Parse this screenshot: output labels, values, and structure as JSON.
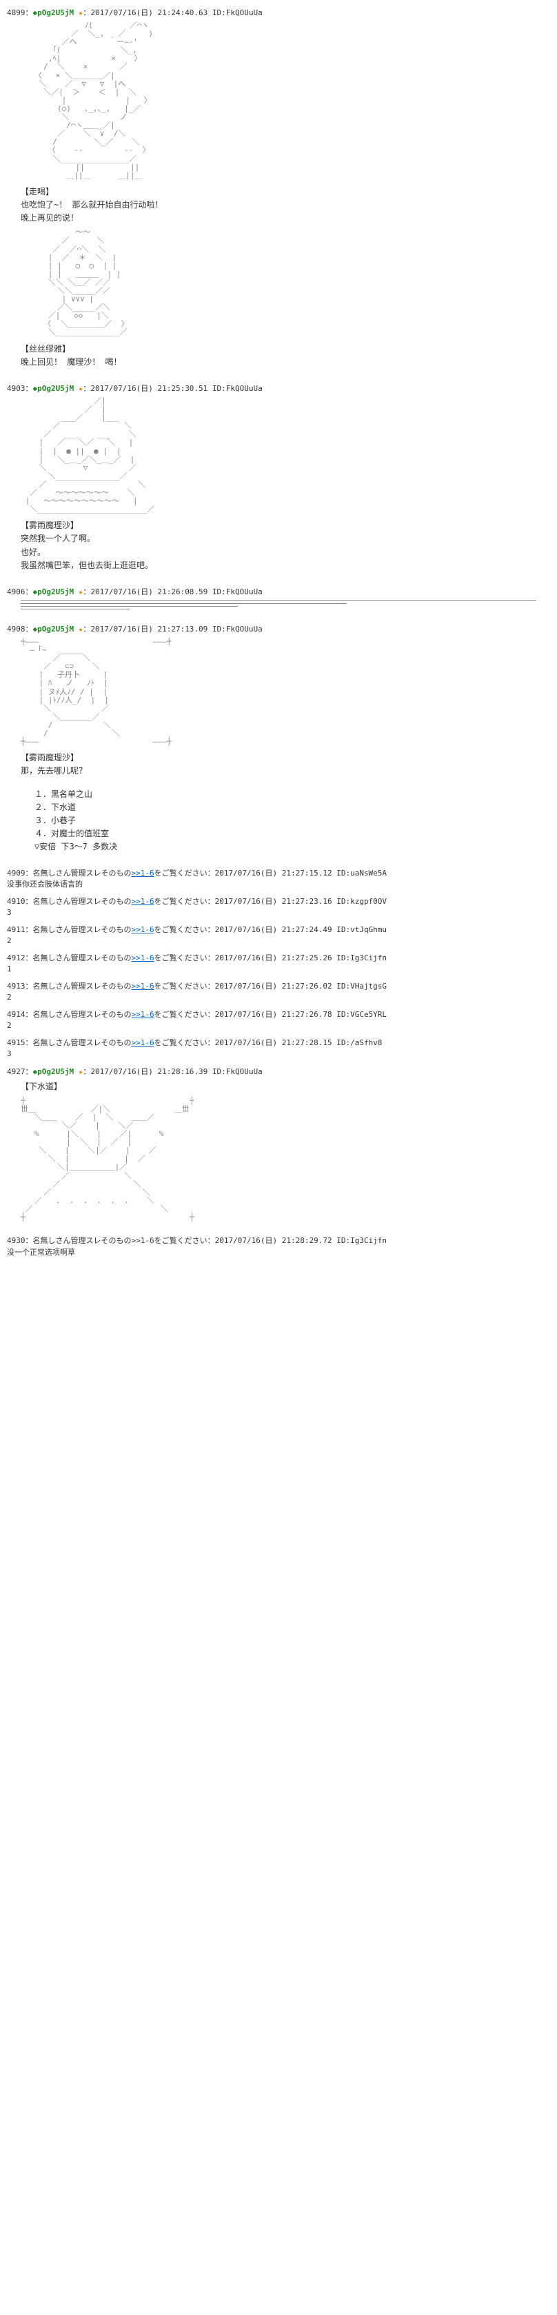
{
  "posts": [
    {
      "num": "4899",
      "trip": "◆pOg2U5jM",
      "star": "★",
      "date": "2017/07/16(日) 21:24:40.63",
      "id": "ID:FkQOUuUa",
      "aa": "aa1",
      "dialogues": [
        {
          "speaker": "【走喝】",
          "lines": [
            "也吃饱了~！  那么就开始自由行动啦！",
            "晚上再见的说！"
          ]
        }
      ]
    },
    {
      "num": "",
      "aa": "aa2",
      "dialogues": [
        {
          "speaker": "【丝丝缪雅】",
          "lines": [
            "晚上回见！  魔理沙！  喝！"
          ]
        }
      ]
    },
    {
      "num": "4903",
      "trip": "◆pOg2U5jM",
      "star": "★",
      "date": "2017/07/16(日) 21:25:30.51",
      "id": "ID:FkQOUuUa",
      "aa": "aa3",
      "dialogues": [
        {
          "speaker": "【雾雨魔理沙】",
          "lines": [
            "突然我一个人了啊。",
            "也好。",
            "我虽然嘴巴笨，但也去街上逛逛吧。"
          ]
        }
      ]
    },
    {
      "num": "4906",
      "trip": "◆pOg2U5jM",
      "star": "★",
      "date": "2017/07/16(日) 21:26:08.59",
      "id": "ID:FkQOUuUa",
      "aa": "hr"
    },
    {
      "num": "4908",
      "trip": "◆pOg2U5jM",
      "star": "★",
      "date": "2017/07/16(日) 21:27:13.09",
      "id": "ID:FkQOUuUa",
      "aa": "aa4",
      "dialogues": [
        {
          "speaker": "【雾雨魔理沙】",
          "lines": [
            "那，先去哪儿呢？"
          ]
        }
      ],
      "options": [
        "１．黑名单之山",
        "２．下水道",
        "３．小巷子",
        "４．对魔士的值班室",
        "▽安倍  下3～7  多数决"
      ]
    }
  ],
  "replies": [
    {
      "num": "4909",
      "name": "名無しさん管理スレそのもの>>1-6をご覧ください",
      "date": "2017/07/16(日) 21:27:15.12",
      "id": "ID:uaNsWe5A",
      "body": "没事你还会肢体语言的"
    },
    {
      "num": "4910",
      "name": "名無しさん管理スレそのもの>>1-6をご覧ください",
      "date": "2017/07/16(日) 21:27:23.16",
      "id": "ID:kzgpf0OV",
      "body": "3"
    },
    {
      "num": "4911",
      "name": "名無しさん管理スレそのもの>>1-6をご覧ください",
      "date": "2017/07/16(日) 21:27:24.49",
      "id": "ID:vtJqGhmu",
      "body": "2"
    },
    {
      "num": "4912",
      "name": "名無しさん管理スレそのもの>>1-6をご覧ください",
      "date": "2017/07/16(日) 21:27:25.26",
      "id": "ID:Ig3Cijfn",
      "body": "1"
    },
    {
      "num": "4913",
      "name": "名無しさん管理スレそのもの>>1-6をご覧ください",
      "date": "2017/07/16(日) 21:27:26.02",
      "id": "ID:VHajtgsG",
      "body": "2"
    },
    {
      "num": "4914",
      "name": "名無しさん管理スレそのもの>>1-6をご覧ください",
      "date": "2017/07/16(日) 21:27:26.78",
      "id": "ID:VGCe5YRL",
      "body": "2"
    },
    {
      "num": "4915",
      "name": "名無しさん管理スレそのもの>>1-6をご覧ください",
      "date": "2017/07/16(日) 21:27:28.15",
      "id": "ID:/aSfhv8",
      "body": "3"
    }
  ],
  "post4927": {
    "num": "4927",
    "trip": "◆pOg2U5jM",
    "star": "★",
    "date": "2017/07/16(日) 21:28:16.39",
    "id": "ID:FkQOUuUa",
    "speaker": "【下水道】"
  },
  "reply4930": {
    "num": "4930",
    "name": "名無しさん管理スレそのもの>>1-6をご覧ください",
    "date": "2017/07/16(日) 21:28:29.72",
    "id": "ID:Ig3Cijfn",
    "body": "没一个正常选项啊草"
  },
  "aa_blocks": {
    "aa1": "              ﾉ(        ／⌒ヽ\n           ／  ＼_,   ／     )\n         ／へ       ｀ー―‐'\n       ｢(             ＼_,\n      ,ﾍ|           ×    〉\n     /  ＼    ×       ／\n   〈   × ＼＿＿＿＿／|\n    ＼    ／  ▽   ▽  |へ\n     ＼／|  ＞    ＜  |  ＼\n         |             |   〉\n        (○)   ､_,､_,   |_／\n         ＼           ノ\n          /⌒ヽ＿＿_／|\n        ／    ＼  ∨  /＼\n       /        ＼_／    ＼\n      〈    ‐-         -‐  〉\n       ＼_______________／\n            ||          ||\n          ＿||＿      ＿||＿",
    "aa2": "            ～～\n         ／      ＼\n       ／  ／⌒＼  ＼\n      |  ／  ＊  ＼  |\n      | |   ○  ○  | |\n      | |   ＿＿＿  | |\n      ＼＼ ＼＿／ ／／\n        ＼＼_____／／\n         | ∨∨∨ |\n        ／＼_____／＼\n      ／|   ◇◇   |＼\n     〈  ＼________／  〉\n      ＼______________／",
    "aa3": "                ／|\n              ／  |\n         ___／    |___\n       ／              ＼\n     ／   ___    ___    ＼\n    |   ／   ＼／   ＼   |\n    |  |  ● ||  ● |  |\n    |   ＼_＿_／＼_＿_／  |\n    ＼        ▽         ／\n      ＼______________／\n    ／                    ＼\n  ／    ～～～～～～～    ＼\n |   ～～～～～～～～～～   |\n  ＼________________________／",
    "aa4": "┼―――                         ―――┼\n  ―「~                              \n       ／￣￣￣＼                    \n     ／   ⊂⊃    ＼\n    |   子丹卜     |\n    | ﾊ   ノ   ﾉﾄ  |\n    | ヌﾒ人ﾉ/ / |  |\n    | |ﾄ/ﾉ人_/  |  |\n     ＼           ／\n       ＼_______／\n      /           ＼\n     /              ＼\n┼―――                         ―――┼",
    "aa5": "┼                                    ┼\n丗＿            ／|＼              ＿丗\n   ＼＿＿    ／  |  ＼    ＿＿／\n         ＼／    |    ＼／\n   %      |＼    |    ／|      %\n          |  ＼  |  ／  |\n    ＼    |    ＼|／    |    ／\n      ＼  |            |  ／\n        ＼|＿＿＿＿＿＿|／\n         ／            ＼\n       ／                ＼\n     ／                    ＼\n   ／   .  .  .  .  .  .    ＼\n ／                            ＼\n┼                                    ┼"
  }
}
